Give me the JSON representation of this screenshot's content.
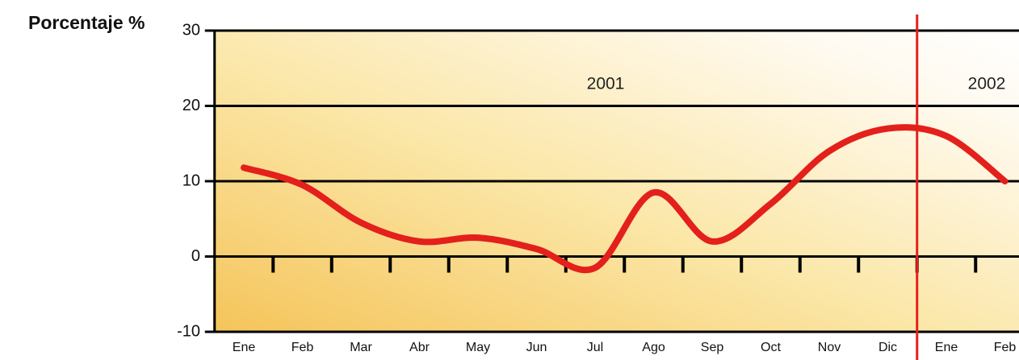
{
  "chart_data": {
    "type": "line",
    "y_label": "Porcentaje %",
    "categories": [
      "Ene",
      "Feb",
      "Mar",
      "Abr",
      "May",
      "Jun",
      "Jul",
      "Ago",
      "Sep",
      "Oct",
      "Nov",
      "Dic",
      "Ene",
      "Feb"
    ],
    "series": [
      {
        "name": "Porcentaje",
        "color": "#e3201b",
        "values": [
          11.8,
          9.5,
          4.5,
          2,
          2.5,
          1,
          -1.5,
          8.5,
          2,
          7,
          14,
          17,
          16,
          10
        ]
      }
    ],
    "ylim": [
      -10,
      30
    ],
    "yticks": [
      -10,
      0,
      10,
      20,
      30
    ],
    "grid": true,
    "annotations": [
      "2001",
      "2002"
    ]
  }
}
